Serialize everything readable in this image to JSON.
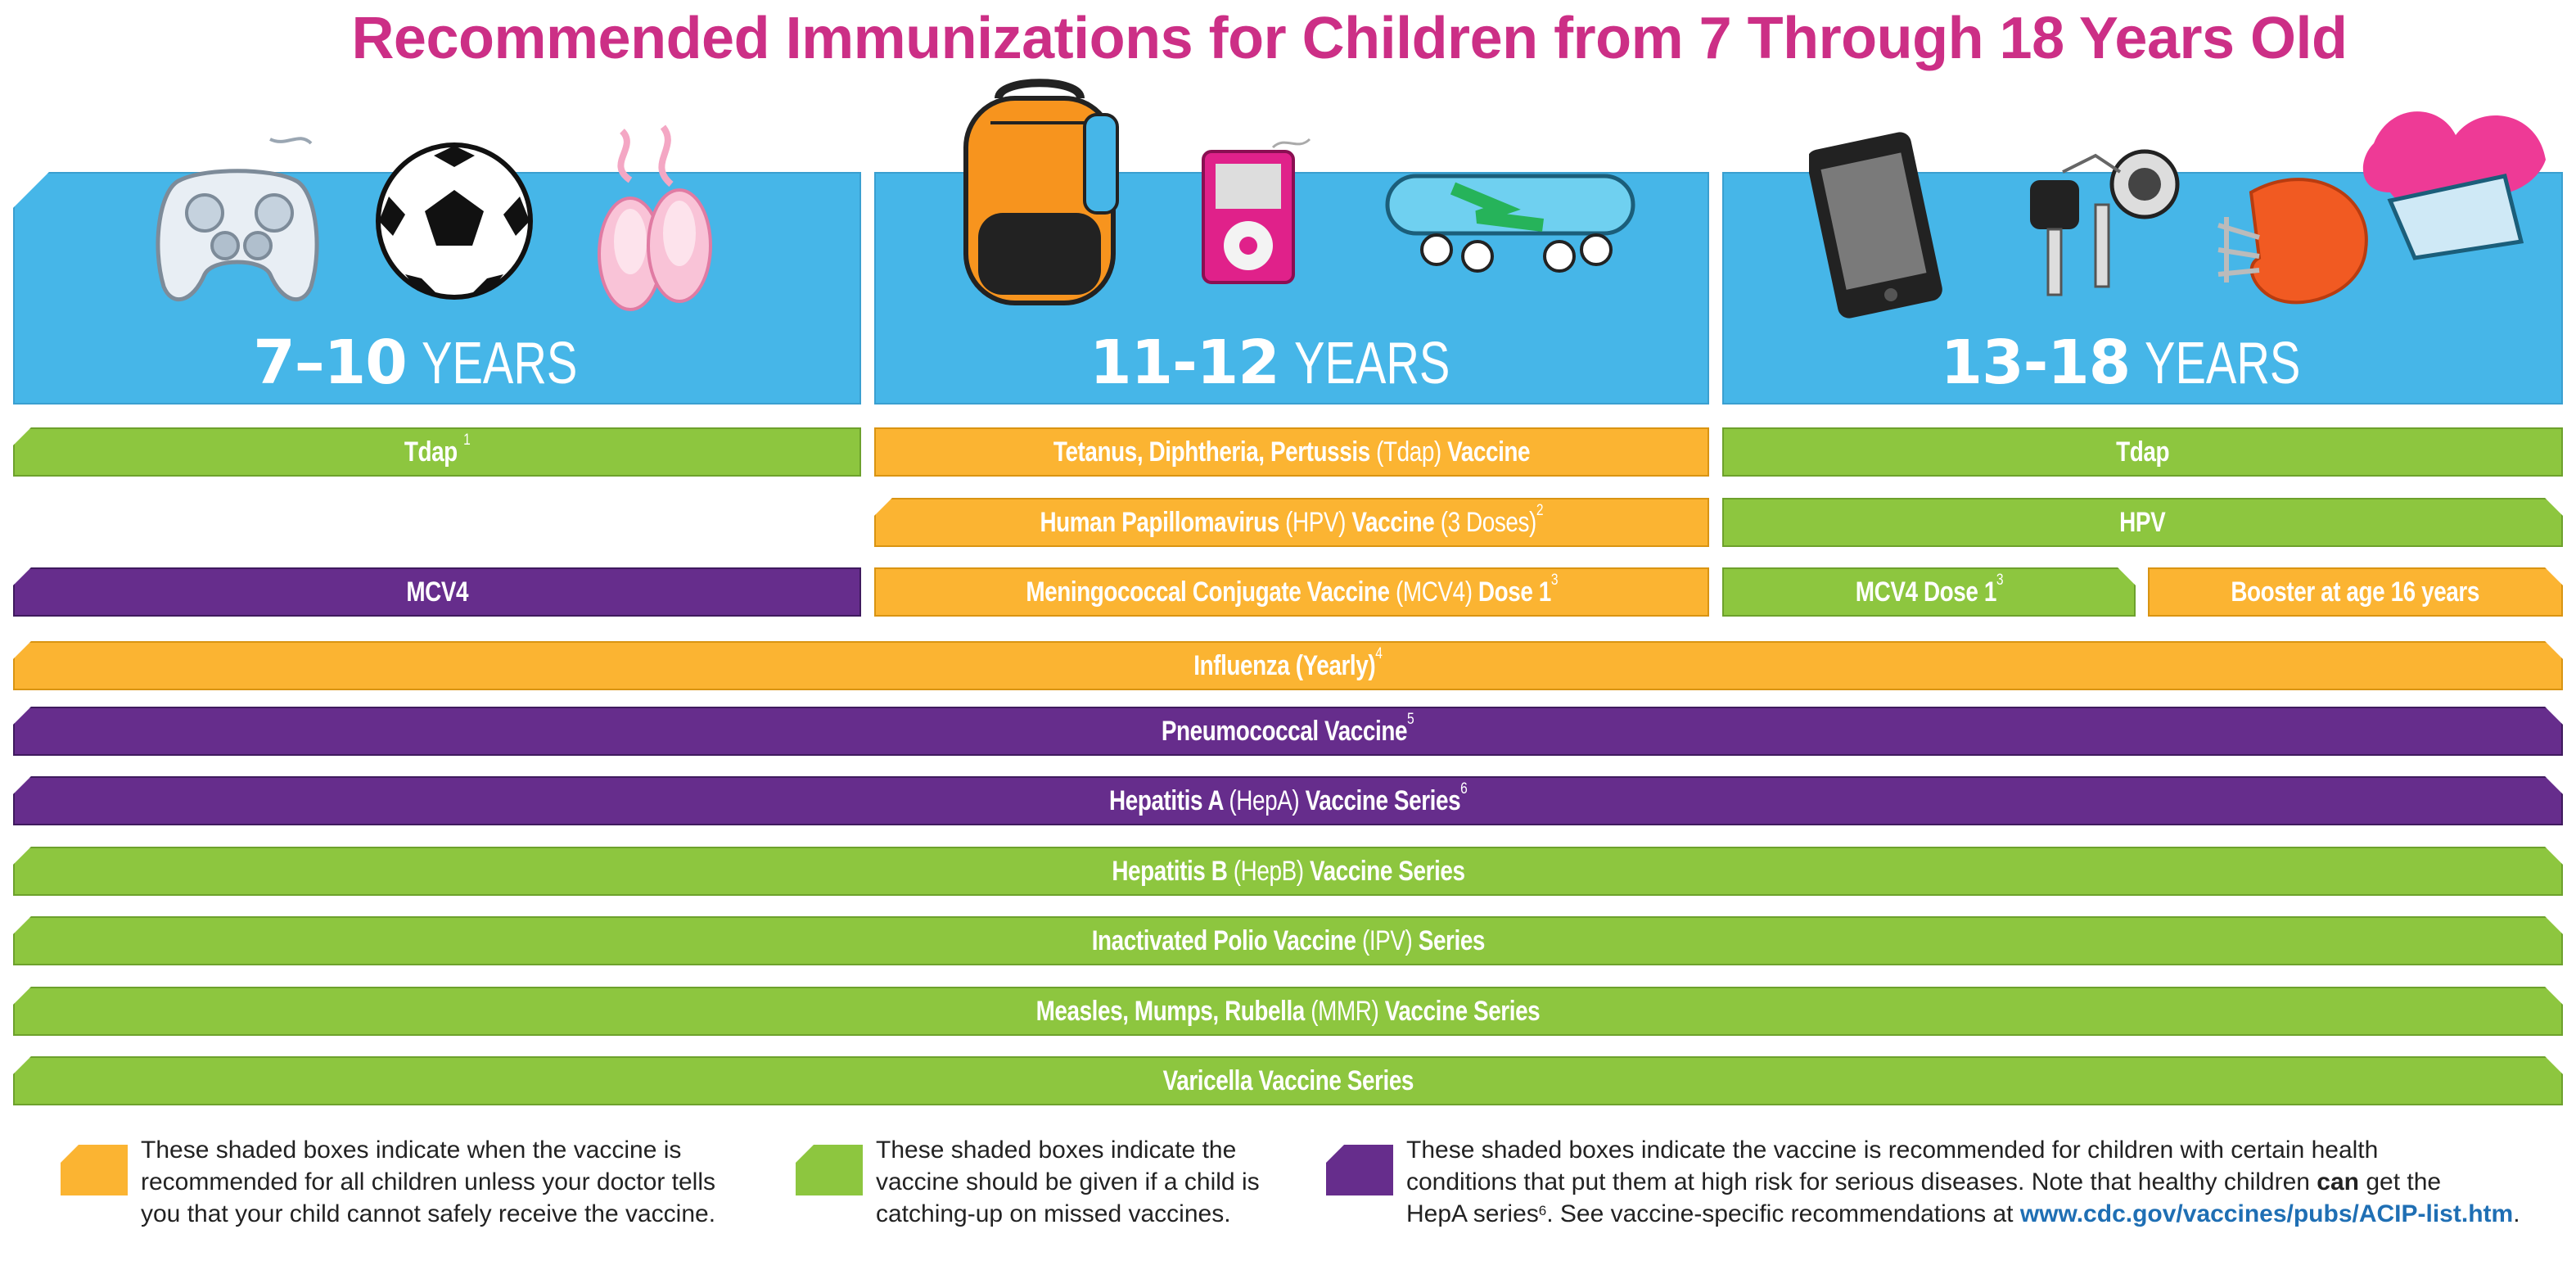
{
  "title": "Recommended Immunizations for Children from 7 Through 18 Years Old",
  "age_groups": [
    {
      "range": "7–10",
      "word": "YEARS"
    },
    {
      "range": "11-12",
      "word": "YEARS"
    },
    {
      "range": "13-18",
      "word": "YEARS"
    }
  ],
  "icons": [
    "game-controller",
    "soccer-ball",
    "ballet-slippers",
    "backpack",
    "music-player",
    "skateboard",
    "cell-phone",
    "car-keys",
    "football-helmet",
    "pom-pom-and-megaphone"
  ],
  "colors": {
    "yellow": "#fbb432",
    "green": "#8dc63f",
    "purple": "#662d8c",
    "sky": "#46b6e8",
    "title": "#cc2f86"
  },
  "rows": {
    "tdap_7_10": {
      "bold": "Tdap",
      "sup": "1"
    },
    "tdap_11_12": {
      "bold1": "Tetanus, Diphtheria, Pertussis",
      "thin": "(Tdap)",
      "bold2": "Vaccine"
    },
    "tdap_13_18": {
      "bold": "Tdap"
    },
    "hpv_11_12": {
      "bold1": "Human Papillomavirus",
      "thin1": "(HPV)",
      "bold2": "Vaccine",
      "thin2": "(3 Doses)",
      "sup": "2"
    },
    "hpv_13_18": {
      "bold": "HPV"
    },
    "mcv4_7_10": {
      "bold": "MCV4"
    },
    "mcv4_11_12": {
      "bold1": "Meningococcal Conjugate Vaccine",
      "thin": "(MCV4)",
      "bold2": "Dose 1",
      "sup": "3"
    },
    "mcv4_13_18": {
      "bold": "MCV4 Dose 1",
      "sup": "3"
    },
    "booster_13_18": {
      "bold": "Booster at age 16 years"
    },
    "influenza": {
      "bold": "Influenza (Yearly)",
      "sup": "4"
    },
    "pneumococcal": {
      "bold": "Pneumococcal Vaccine",
      "sup": "5"
    },
    "hepa": {
      "bold1": "Hepatitis A",
      "thin": "(HepA)",
      "bold2": "Vaccine Series",
      "sup": "6"
    },
    "hepb": {
      "bold1": "Hepatitis B",
      "thin": "(HepB)",
      "bold2": "Vaccine Series"
    },
    "ipv": {
      "bold1": "Inactivated Polio Vaccine",
      "thin": "(IPV)",
      "bold2": "Series"
    },
    "mmr": {
      "bold1": "Measles, Mumps, Rubella",
      "thin": "(MMR)",
      "bold2": "Vaccine Series"
    },
    "varicella": {
      "bold": "Varicella Vaccine Series"
    }
  },
  "legend": {
    "yellow": {
      "line1": "These shaded boxes indicate when the vaccine is",
      "line2": "recommended for all children unless your doctor tells",
      "line3": "you that your child cannot safely receive the vaccine."
    },
    "green": {
      "line1": "These shaded boxes indicate the",
      "line2": "vaccine should be given if a child is",
      "line3": "catching-up on missed vaccines."
    },
    "purple": {
      "line1": "These shaded boxes indicate the vaccine is recommended for children with certain health",
      "line2a": "conditions that put them at high risk for serious diseases. Note that healthy children",
      "line2b": "can",
      "line2c": "get the",
      "line3a": "HepA series",
      "line3sup": "6",
      "line3b": ". See vaccine-specific recommendations at",
      "link": "www.cdc.gov/vaccines/pubs/ACIP-list.htm",
      "line3c": "."
    }
  }
}
